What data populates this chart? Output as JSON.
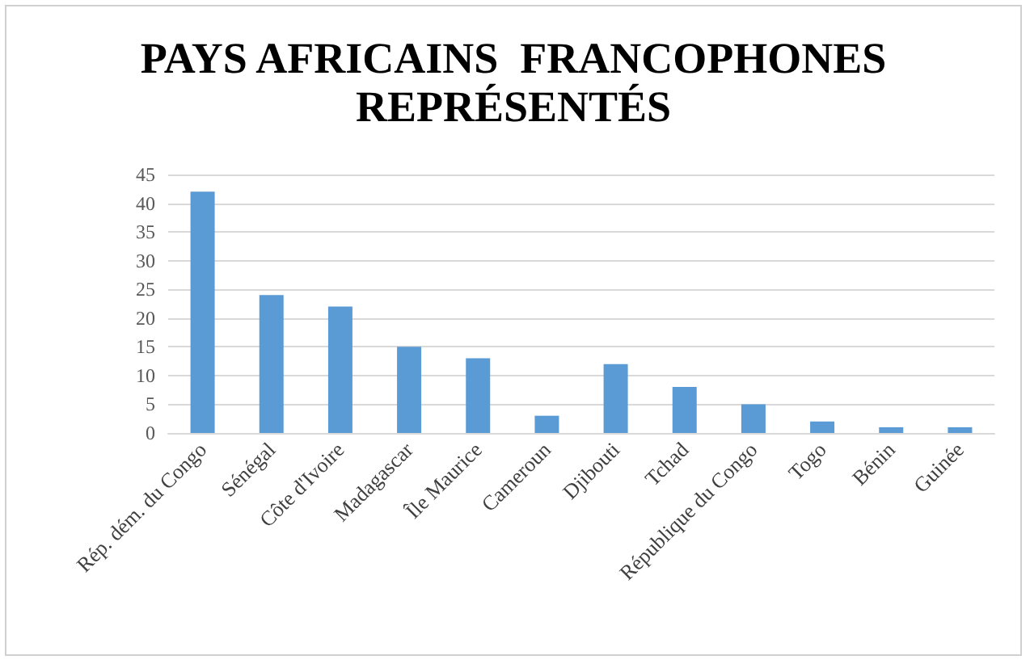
{
  "chart_data": {
    "type": "bar",
    "title": "PAYS AFRICAINS  FRANCOPHONES\nREPRÉSENTÉS",
    "categories": [
      "Rép. dém. du Congo",
      "Sénégal",
      "Côte d'Ivoire",
      "Madagascar",
      "Île Maurice",
      "Cameroun",
      "Djibouti",
      "Tchad",
      "République du Congo",
      "Togo",
      "Bénin",
      "Guinée"
    ],
    "values": [
      42,
      24,
      22,
      15,
      13,
      3,
      12,
      8,
      5,
      2,
      1,
      1
    ],
    "color": "#5b9bd5",
    "ylim": [
      0,
      45
    ],
    "yticks": [
      0,
      5,
      10,
      15,
      20,
      25,
      30,
      35,
      40,
      45
    ],
    "grid": "y"
  }
}
